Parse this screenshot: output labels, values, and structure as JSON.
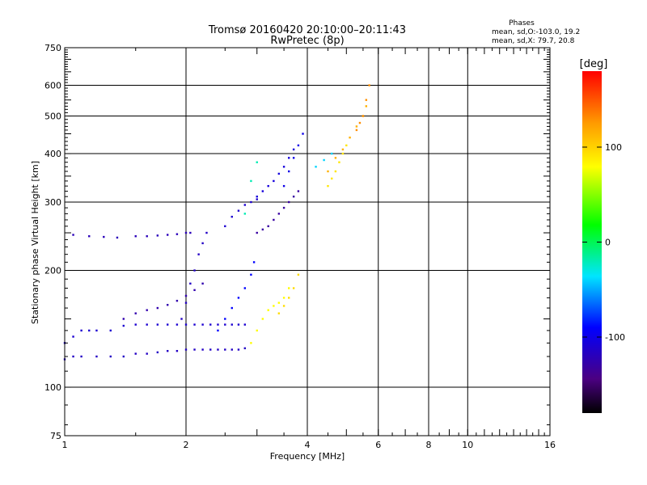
{
  "header": {
    "title_line1": "Tromsø 20160420 20:10:00–20:11:43",
    "title_line2": "RwPretec (8p)",
    "phases_title": "Phases",
    "phases_o": "mean, sd,O:-103.0, 19.2",
    "phases_x": "mean, sd,X:  79.7, 20.8"
  },
  "chart_data": {
    "type": "scatter",
    "xlabel": "Frequency [MHz]",
    "ylabel": "Stationary phase Virtual Height [km]",
    "x_scale": "log",
    "y_scale": "log",
    "xlim": [
      1,
      16
    ],
    "ylim": [
      75,
      750
    ],
    "x_ticks": [
      1,
      2,
      4,
      6,
      8,
      10,
      16
    ],
    "y_ticks": [
      75,
      100,
      200,
      300,
      400,
      500,
      600,
      750
    ],
    "x_grid": [
      2,
      4,
      6,
      8,
      10
    ],
    "y_grid": [
      100,
      200,
      300,
      400,
      500,
      600
    ],
    "colorbar": {
      "label": "[deg]",
      "range": [
        -180,
        180
      ],
      "ticks": [
        100,
        0,
        -100
      ],
      "colormap": "rainbow: black-purple-blue-cyan-green-yellow-orange-red"
    },
    "series": [
      {
        "x": [
          1.0,
          1.05,
          1.1,
          1.15,
          1.2,
          1.3,
          1.4,
          1.5,
          1.6,
          1.7,
          1.8,
          1.9,
          2.0,
          2.1,
          2.2,
          2.3,
          2.4,
          2.5,
          2.6,
          2.7,
          2.8
        ],
        "y": [
          130,
          135,
          140,
          140,
          140,
          140,
          144,
          145,
          145,
          145,
          145,
          145,
          145,
          145,
          145,
          145,
          145,
          145,
          145,
          145,
          145
        ],
        "phase": -110
      },
      {
        "x": [
          1.0,
          1.05,
          1.1,
          1.2,
          1.3,
          1.4,
          1.5,
          1.6,
          1.7,
          1.8,
          1.9,
          2.0,
          2.1,
          2.2,
          2.3,
          2.4,
          2.5,
          2.6,
          2.7,
          2.8
        ],
        "y": [
          118,
          120,
          120,
          120,
          120,
          120,
          122,
          122,
          123,
          124,
          124,
          125,
          125,
          125,
          125,
          125,
          125,
          125,
          125,
          126
        ],
        "phase": -115
      },
      {
        "x": [
          1.05,
          1.15,
          1.25,
          1.35,
          1.5,
          1.6,
          1.7,
          1.8,
          1.9,
          2.0,
          2.05
        ],
        "y": [
          247,
          245,
          244,
          243,
          245,
          245,
          246,
          247,
          248,
          250,
          250
        ],
        "phase": -120
      },
      {
        "x": [
          1.4,
          1.5,
          1.6,
          1.7,
          1.8,
          1.9,
          2.0,
          2.1,
          2.2
        ],
        "y": [
          150,
          155,
          158,
          160,
          163,
          167,
          172,
          178,
          185
        ],
        "phase": -125
      },
      {
        "x": [
          1.95,
          2.0,
          2.05,
          2.1,
          2.15,
          2.2,
          2.25
        ],
        "y": [
          150,
          165,
          185,
          200,
          220,
          235,
          250
        ],
        "phase": -115
      },
      {
        "x": [
          2.4,
          2.5,
          2.6,
          2.7,
          2.8,
          2.9,
          2.95
        ],
        "y": [
          140,
          150,
          160,
          170,
          180,
          195,
          210
        ],
        "phase": -90
      },
      {
        "x": [
          2.5,
          2.6,
          2.7,
          2.8,
          2.9,
          3.0
        ],
        "y": [
          260,
          275,
          285,
          295,
          300,
          305
        ],
        "phase": -110
      },
      {
        "x": [
          3.0,
          3.1,
          3.2,
          3.3,
          3.4,
          3.5,
          3.6,
          3.7
        ],
        "y": [
          310,
          320,
          330,
          340,
          355,
          370,
          390,
          410
        ],
        "phase": -105
      },
      {
        "x": [
          3.0,
          3.1,
          3.2,
          3.3,
          3.4,
          3.5,
          3.6,
          3.7,
          3.8
        ],
        "y": [
          250,
          255,
          260,
          270,
          280,
          290,
          300,
          310,
          320
        ],
        "phase": -130
      },
      {
        "x": [
          3.5,
          3.6,
          3.7,
          3.8,
          3.9
        ],
        "y": [
          330,
          360,
          390,
          420,
          450
        ],
        "phase": -100
      },
      {
        "x": [
          2.9,
          3.0,
          3.1,
          3.2,
          3.3,
          3.4,
          3.5,
          3.6
        ],
        "y": [
          130,
          140,
          150,
          158,
          162,
          165,
          170,
          180
        ],
        "phase": 80
      },
      {
        "x": [
          3.4,
          3.5,
          3.6,
          3.7,
          3.8
        ],
        "y": [
          155,
          162,
          170,
          180,
          195
        ],
        "phase": 95
      },
      {
        "x": [
          4.5,
          4.6,
          4.7,
          4.8,
          4.9,
          5.0
        ],
        "y": [
          330,
          345,
          360,
          380,
          400,
          420
        ],
        "phase": 90
      },
      {
        "x": [
          4.5,
          4.7,
          4.9,
          5.1,
          5.3,
          5.5,
          5.6
        ],
        "y": [
          360,
          390,
          410,
          440,
          470,
          500,
          530
        ],
        "phase": 115
      },
      {
        "x": [
          5.3,
          5.4,
          5.5,
          5.6,
          5.7
        ],
        "y": [
          460,
          480,
          500,
          550,
          600
        ],
        "phase": 130
      },
      {
        "x": [
          4.2,
          4.4,
          4.6
        ],
        "y": [
          370,
          385,
          400
        ],
        "phase": -40
      },
      {
        "x": [
          2.8,
          2.9,
          3.0
        ],
        "y": [
          280,
          340,
          380
        ],
        "phase": -20
      }
    ]
  }
}
